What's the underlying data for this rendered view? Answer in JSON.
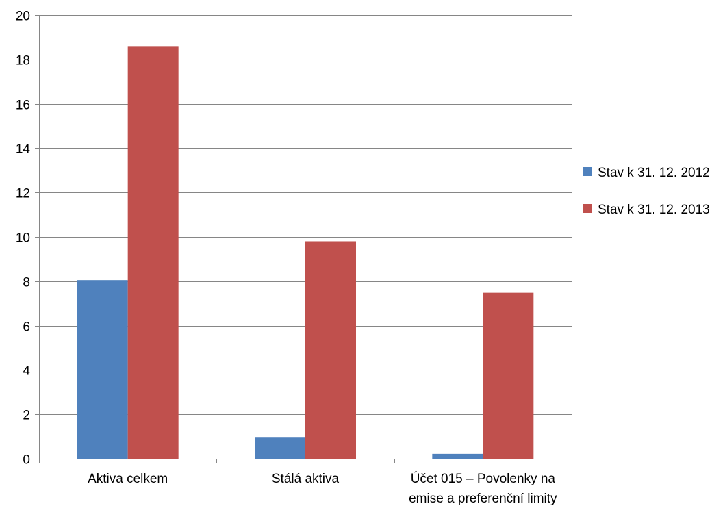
{
  "chart_data": {
    "type": "bar",
    "title": "",
    "xlabel": "",
    "ylabel": "",
    "categories": [
      [
        "Aktiva celkem"
      ],
      [
        "Stálá aktiva"
      ],
      [
        "Účet 015 – Povolenky na",
        "emise a preferenční limity"
      ]
    ],
    "series": [
      {
        "name": "Stav k 31. 12. 2012",
        "color": "#4F81BD",
        "values": [
          8.05,
          0.95,
          0.22
        ]
      },
      {
        "name": "Stav k 31. 12. 2013",
        "color": "#C0504D",
        "values": [
          18.6,
          9.8,
          7.48
        ]
      }
    ],
    "ylim": [
      0,
      20
    ],
    "yticks": [
      "0",
      "2",
      "4",
      "6",
      "8",
      "10",
      "12",
      "14",
      "16",
      "18",
      "20"
    ],
    "grid": true,
    "legend_position": "right"
  }
}
